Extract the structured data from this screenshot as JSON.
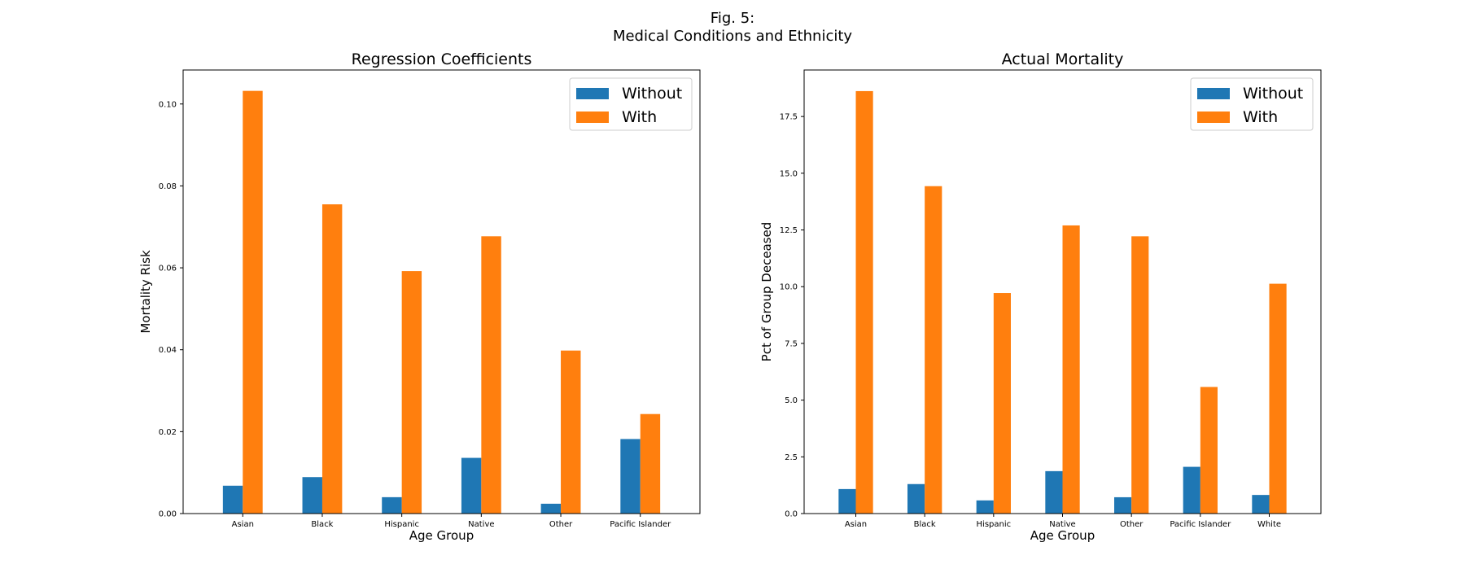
{
  "figure": {
    "title_line1": "Fig. 5:",
    "title_line2": "Medical Conditions and Ethnicity"
  },
  "chart_data": [
    {
      "type": "bar",
      "title": "Regression Coefficients",
      "xlabel": "Age Group",
      "ylabel": "Mortality Risk",
      "categories": [
        "Asian",
        "Black",
        "Hispanic",
        "Native",
        "Other",
        "Pacific Islander"
      ],
      "series": [
        {
          "name": "Without",
          "color": "#1f77b4",
          "values": [
            0.0068,
            0.0089,
            0.004,
            0.0136,
            0.0024,
            0.0182
          ]
        },
        {
          "name": "With",
          "color": "#ff7f0e",
          "values": [
            0.1032,
            0.0755,
            0.0592,
            0.0677,
            0.0398,
            0.0243
          ]
        }
      ],
      "ylim": [
        0,
        0.1083
      ],
      "yticks": [
        "0.00",
        "0.02",
        "0.04",
        "0.06",
        "0.08",
        "0.10"
      ],
      "ytick_values": [
        0,
        0.02,
        0.04,
        0.06,
        0.08,
        0.1
      ],
      "grid": false,
      "legend": "top-right"
    },
    {
      "type": "bar",
      "title": "Actual Mortality",
      "xlabel": "Age Group",
      "ylabel": "Pct of Group Deceased",
      "categories": [
        "Asian",
        "Black",
        "Hispanic",
        "Native",
        "Other",
        "Pacific Islander",
        "White"
      ],
      "series": [
        {
          "name": "Without",
          "color": "#1f77b4",
          "values": [
            1.08,
            1.3,
            0.58,
            1.87,
            0.72,
            2.06,
            0.82
          ]
        },
        {
          "name": "With",
          "color": "#ff7f0e",
          "values": [
            18.62,
            14.43,
            9.72,
            12.7,
            12.22,
            5.58,
            10.13
          ]
        }
      ],
      "ylim": [
        0,
        19.55
      ],
      "yticks": [
        "0.0",
        "2.5",
        "5.0",
        "7.5",
        "10.0",
        "12.5",
        "15.0",
        "17.5"
      ],
      "ytick_values": [
        0,
        2.5,
        5.0,
        7.5,
        10.0,
        12.5,
        15.0,
        17.5
      ],
      "grid": false,
      "legend": "top-right"
    }
  ]
}
